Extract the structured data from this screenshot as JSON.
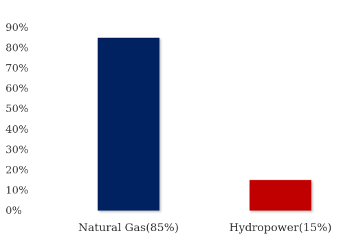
{
  "chart_data": {
    "type": "bar",
    "categories": [
      "Natural Gas(85%)",
      "Hydropower(15%)"
    ],
    "values": [
      85,
      15
    ],
    "colors": [
      "#002060",
      "#c00000"
    ],
    "title": "",
    "xlabel": "",
    "ylabel": "",
    "ylim": [
      0,
      90
    ],
    "yticks": [
      "0%",
      "10%",
      "20%",
      "30%",
      "40%",
      "50%",
      "60%",
      "70%",
      "80%",
      "90%"
    ],
    "grid": false,
    "legend": "none"
  }
}
